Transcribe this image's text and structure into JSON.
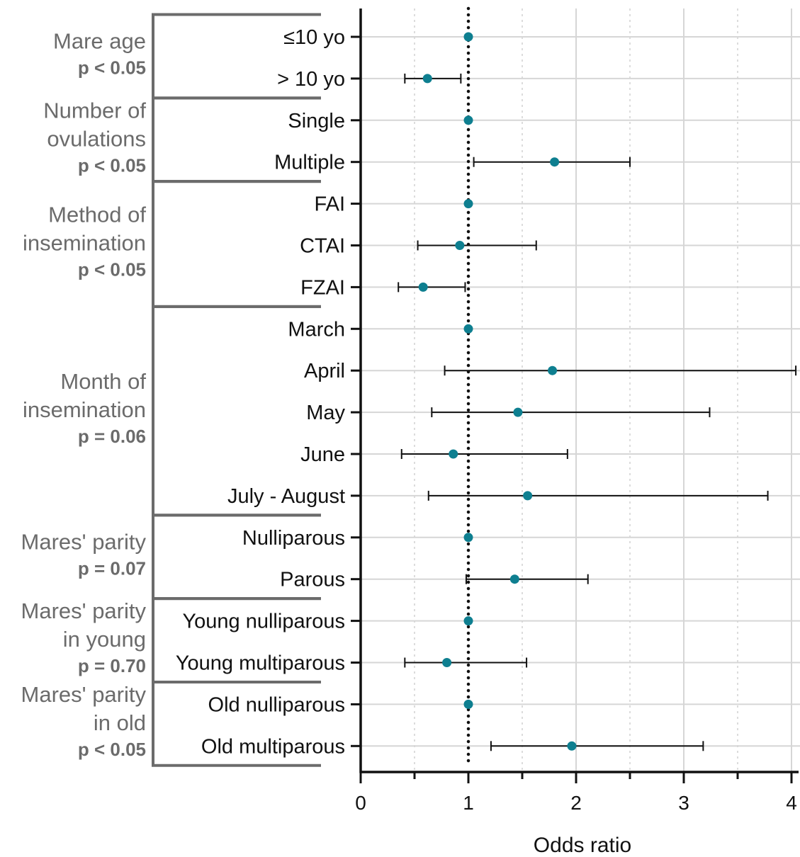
{
  "chart_data": {
    "type": "scatter",
    "subtype": "forest-plot",
    "xlabel": "Odds ratio",
    "xlim": [
      0,
      4
    ],
    "xticks": [
      0,
      1,
      2,
      3,
      4
    ],
    "xtick_labels": [
      "0",
      "1",
      "2",
      "3",
      "4"
    ],
    "reference_line": 1,
    "grid": true,
    "marker_color": "#0e7f90",
    "bracket_color": "#6b6b6b",
    "groups": [
      {
        "label_lines": [
          "Mare age"
        ],
        "p_label": "p < 0.05",
        "rows": [
          {
            "label": "≤10 yo",
            "or": 1.0,
            "ci": null
          },
          {
            "label": "> 10 yo",
            "or": 0.62,
            "ci": [
              0.41,
              0.93
            ]
          }
        ]
      },
      {
        "label_lines": [
          "Number of",
          "ovulations"
        ],
        "p_label": "p < 0.05",
        "rows": [
          {
            "label": "Single",
            "or": 1.0,
            "ci": null
          },
          {
            "label": "Multiple",
            "or": 1.8,
            "ci": [
              1.05,
              2.5
            ]
          }
        ]
      },
      {
        "label_lines": [
          "Method of",
          "insemination"
        ],
        "p_label": "p < 0.05",
        "rows": [
          {
            "label": "FAI",
            "or": 1.0,
            "ci": null
          },
          {
            "label": "CTAI",
            "or": 0.92,
            "ci": [
              0.53,
              1.63
            ]
          },
          {
            "label": "FZAI",
            "or": 0.58,
            "ci": [
              0.35,
              0.97
            ]
          }
        ]
      },
      {
        "label_lines": [
          "Month of",
          "insemination"
        ],
        "p_label": "p = 0.06",
        "rows": [
          {
            "label": "March",
            "or": 1.0,
            "ci": null
          },
          {
            "label": "April",
            "or": 1.78,
            "ci": [
              0.78,
              4.04
            ]
          },
          {
            "label": "May",
            "or": 1.46,
            "ci": [
              0.66,
              3.24
            ]
          },
          {
            "label": "June",
            "or": 0.86,
            "ci": [
              0.38,
              1.92
            ]
          },
          {
            "label": "July - August",
            "or": 1.55,
            "ci": [
              0.63,
              3.78
            ]
          }
        ]
      },
      {
        "label_lines": [
          "Mares' parity"
        ],
        "p_label": "p = 0.07",
        "rows": [
          {
            "label": "Nulliparous",
            "or": 1.0,
            "ci": null
          },
          {
            "label": "Parous",
            "or": 1.43,
            "ci": [
              0.98,
              2.11
            ]
          }
        ]
      },
      {
        "label_lines": [
          "Mares' parity",
          "in young"
        ],
        "p_label": "p = 0.70",
        "rows": [
          {
            "label": "Young nulliparous",
            "or": 1.0,
            "ci": null
          },
          {
            "label": "Young multiparous",
            "or": 0.8,
            "ci": [
              0.41,
              1.54
            ]
          }
        ]
      },
      {
        "label_lines": [
          "Mares' parity",
          "in old"
        ],
        "p_label": "p < 0.05",
        "rows": [
          {
            "label": "Old nulliparous",
            "or": 1.0,
            "ci": null
          },
          {
            "label": "Old multiparous",
            "or": 1.96,
            "ci": [
              1.21,
              3.18
            ]
          }
        ]
      }
    ]
  }
}
